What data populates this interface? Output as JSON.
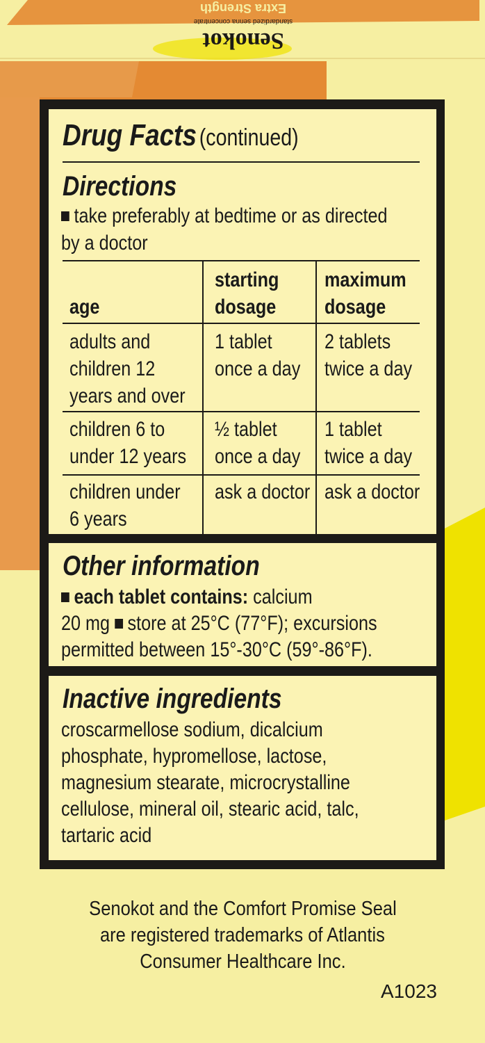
{
  "brand": {
    "logo": "Senokot",
    "tagline": "standardized senna concentrate",
    "variant": "Extra Strength"
  },
  "colors": {
    "cream": "#f6efa2",
    "orange": "#e48a33",
    "yellow": "#efe200",
    "ink": "#1c1a17"
  },
  "drug_facts": {
    "title": "Drug Facts",
    "title_suffix": "(continued)",
    "directions": {
      "heading": "Directions",
      "lines": [
        "take preferably at bedtime or as directed",
        "by a doctor"
      ],
      "table": {
        "headers": [
          "age",
          "starting\ndosage",
          "maximum\ndosage"
        ],
        "rows": [
          [
            "adults and\nchildren 12\nyears and over",
            "1 tablet\nonce a day",
            "2 tablets\ntwice a day"
          ],
          [
            "children 6 to\nunder 12 years",
            "½ tablet\nonce a day",
            "1 tablet\ntwice a day"
          ],
          [
            "children under\n6 years",
            "ask a doctor",
            "ask a doctor"
          ]
        ]
      }
    },
    "other_information": {
      "heading": "Other information",
      "bold_lead": "each tablet contains:",
      "line1_rest": "calcium",
      "line2_a": "20 mg",
      "line2_b": "store at 25°C (77°F); excursions",
      "line3": "permitted between 15°-30°C (59°-86°F)."
    },
    "inactive_ingredients": {
      "heading": "Inactive ingredients",
      "lines": [
        "croscarmellose sodium, dicalcium",
        "phosphate, hypromellose, lactose,",
        "magnesium stearate, microcrystalline",
        "cellulose, mineral oil, stearic acid, talc,",
        "tartaric acid"
      ]
    }
  },
  "footer": {
    "lines": [
      "Senokot and the Comfort Promise Seal",
      "are registered trademarks of Atlantis",
      "Consumer Healthcare Inc."
    ],
    "code": "A1023"
  }
}
